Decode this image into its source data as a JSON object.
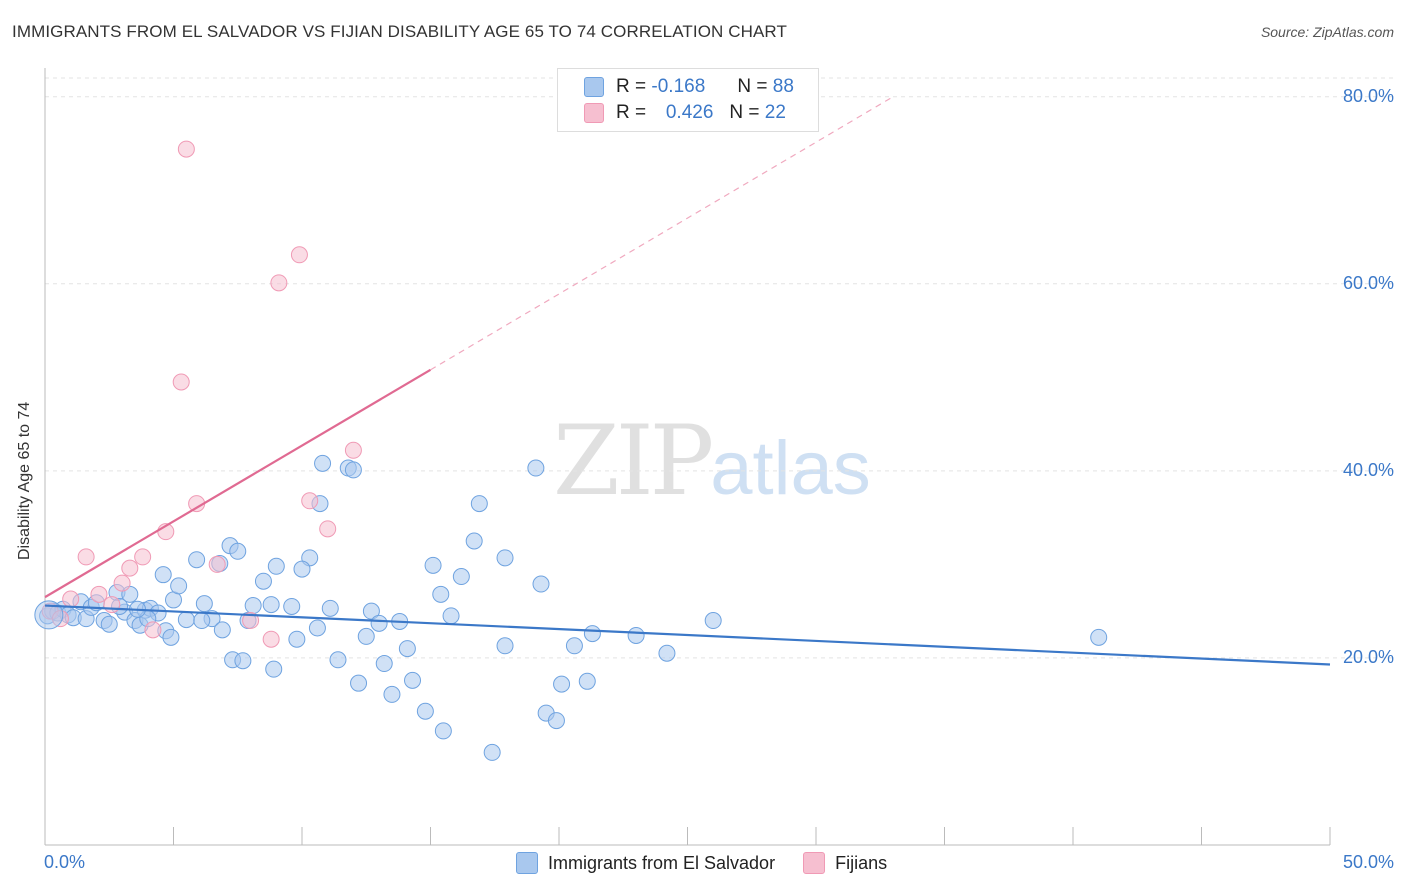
{
  "header": {
    "title": "IMMIGRANTS FROM EL SALVADOR VS FIJIAN DISABILITY AGE 65 TO 74 CORRELATION CHART",
    "source": "Source: ZipAtlas.com"
  },
  "watermark": {
    "zip": "ZIP",
    "atlas": "atlas"
  },
  "legend": {
    "r_label": "R =",
    "n_label": "N =",
    "rows": [
      {
        "r": "-0.168",
        "n": "88",
        "color": "#6fa3e0"
      },
      {
        "r": "0.426",
        "n": "22",
        "color": "#f09ab5"
      }
    ]
  },
  "colors": {
    "blue": "#3b78c8",
    "blue_fill": "#a9c8ee",
    "pink": "#e06a92",
    "pink_fill": "#f6bfd0"
  },
  "chart_data": {
    "type": "scatter",
    "title": "IMMIGRANTS FROM EL SALVADOR VS FIJIAN DISABILITY AGE 65 TO 74 CORRELATION CHART",
    "xlabel": "",
    "ylabel": "Disability Age 65 to 74",
    "xlim": [
      0,
      50
    ],
    "ylim": [
      0,
      82
    ],
    "x_tick_labels": [
      "0.0%",
      "50.0%"
    ],
    "y_ticks": [
      20,
      40,
      60,
      80
    ],
    "y_tick_labels": [
      "20.0%",
      "40.0%",
      "60.0%",
      "80.0%"
    ],
    "grid": true,
    "legend_position": "top-center",
    "series": [
      {
        "name": "Immigrants from El Salvador",
        "color": "#3b78c8",
        "r": -0.168,
        "n": 88,
        "trend": {
          "x": [
            0,
            50
          ],
          "y": [
            25.6,
            19.3
          ],
          "dashed_extension": false
        },
        "points": [
          [
            0.1,
            24.5
          ],
          [
            0.3,
            25.0
          ],
          [
            0.5,
            24.8
          ],
          [
            0.7,
            25.2
          ],
          [
            0.9,
            24.6
          ],
          [
            1.1,
            24.3
          ],
          [
            1.4,
            26.0
          ],
          [
            1.6,
            24.2
          ],
          [
            1.8,
            25.4
          ],
          [
            2.0,
            25.9
          ],
          [
            2.3,
            24.0
          ],
          [
            2.5,
            23.6
          ],
          [
            2.8,
            27.0
          ],
          [
            3.1,
            24.9
          ],
          [
            3.3,
            26.8
          ],
          [
            3.5,
            24.0
          ],
          [
            3.7,
            23.5
          ],
          [
            3.9,
            25.1
          ],
          [
            4.1,
            25.3
          ],
          [
            4.4,
            24.8
          ],
          [
            4.7,
            22.9
          ],
          [
            4.9,
            22.2
          ],
          [
            5.0,
            26.2
          ],
          [
            4.6,
            28.9
          ],
          [
            5.5,
            24.1
          ],
          [
            5.9,
            30.5
          ],
          [
            6.2,
            25.8
          ],
          [
            6.5,
            24.2
          ],
          [
            6.9,
            23.0
          ],
          [
            7.3,
            19.8
          ],
          [
            7.7,
            19.7
          ],
          [
            7.9,
            24.0
          ],
          [
            8.1,
            25.6
          ],
          [
            8.5,
            28.2
          ],
          [
            8.9,
            18.8
          ],
          [
            9.0,
            29.8
          ],
          [
            9.6,
            25.5
          ],
          [
            9.8,
            22.0
          ],
          [
            10.7,
            36.5
          ],
          [
            10.3,
            30.7
          ],
          [
            10.8,
            40.8
          ],
          [
            11.1,
            25.3
          ],
          [
            11.4,
            19.8
          ],
          [
            11.8,
            40.3
          ],
          [
            12.2,
            17.3
          ],
          [
            12.5,
            22.3
          ],
          [
            12.7,
            25.0
          ],
          [
            13.0,
            23.7
          ],
          [
            13.2,
            19.4
          ],
          [
            13.5,
            16.1
          ],
          [
            13.8,
            23.9
          ],
          [
            14.1,
            21.0
          ],
          [
            14.3,
            17.6
          ],
          [
            14.8,
            14.3
          ],
          [
            15.1,
            29.9
          ],
          [
            15.4,
            26.8
          ],
          [
            15.5,
            12.2
          ],
          [
            15.8,
            24.5
          ],
          [
            16.2,
            28.7
          ],
          [
            16.7,
            32.5
          ],
          [
            16.9,
            36.5
          ],
          [
            17.4,
            9.9
          ],
          [
            17.9,
            21.3
          ],
          [
            17.9,
            30.7
          ],
          [
            19.1,
            40.3
          ],
          [
            19.5,
            14.1
          ],
          [
            19.3,
            27.9
          ],
          [
            19.9,
            13.3
          ],
          [
            20.1,
            17.2
          ],
          [
            20.6,
            21.3
          ],
          [
            21.1,
            17.5
          ],
          [
            21.3,
            22.6
          ],
          [
            23.0,
            22.4
          ],
          [
            24.2,
            20.5
          ],
          [
            26.0,
            24.0
          ],
          [
            41.0,
            22.2
          ],
          [
            7.2,
            32.0
          ],
          [
            7.5,
            31.4
          ],
          [
            6.8,
            30.1
          ],
          [
            6.1,
            24.0
          ],
          [
            12.0,
            40.1
          ],
          [
            4.0,
            24.2
          ],
          [
            2.9,
            25.5
          ],
          [
            3.6,
            25.2
          ],
          [
            5.2,
            27.7
          ],
          [
            8.8,
            25.7
          ],
          [
            10.6,
            23.2
          ],
          [
            10.0,
            29.5
          ]
        ]
      },
      {
        "name": "Fijians",
        "color": "#e06a92",
        "r": 0.426,
        "n": 22,
        "trend": {
          "x": [
            0,
            15
          ],
          "y": [
            26.5,
            50.8
          ],
          "dashed_extension": true,
          "dashed_to": [
            33,
            80
          ]
        },
        "points": [
          [
            0.2,
            25.0
          ],
          [
            0.6,
            24.2
          ],
          [
            1.0,
            26.3
          ],
          [
            1.6,
            30.8
          ],
          [
            2.1,
            26.8
          ],
          [
            2.6,
            25.7
          ],
          [
            3.0,
            28.0
          ],
          [
            3.3,
            29.6
          ],
          [
            3.8,
            30.8
          ],
          [
            4.2,
            23.0
          ],
          [
            4.7,
            33.5
          ],
          [
            5.3,
            49.5
          ],
          [
            5.5,
            74.4
          ],
          [
            5.9,
            36.5
          ],
          [
            6.7,
            30.0
          ],
          [
            8.0,
            24.0
          ],
          [
            8.8,
            22.0
          ],
          [
            9.1,
            60.1
          ],
          [
            9.9,
            63.1
          ],
          [
            10.3,
            36.8
          ],
          [
            11.0,
            33.8
          ],
          [
            12.0,
            42.2
          ]
        ]
      }
    ]
  },
  "bottom_legend": [
    "Immigrants from El Salvador",
    "Fijians"
  ]
}
